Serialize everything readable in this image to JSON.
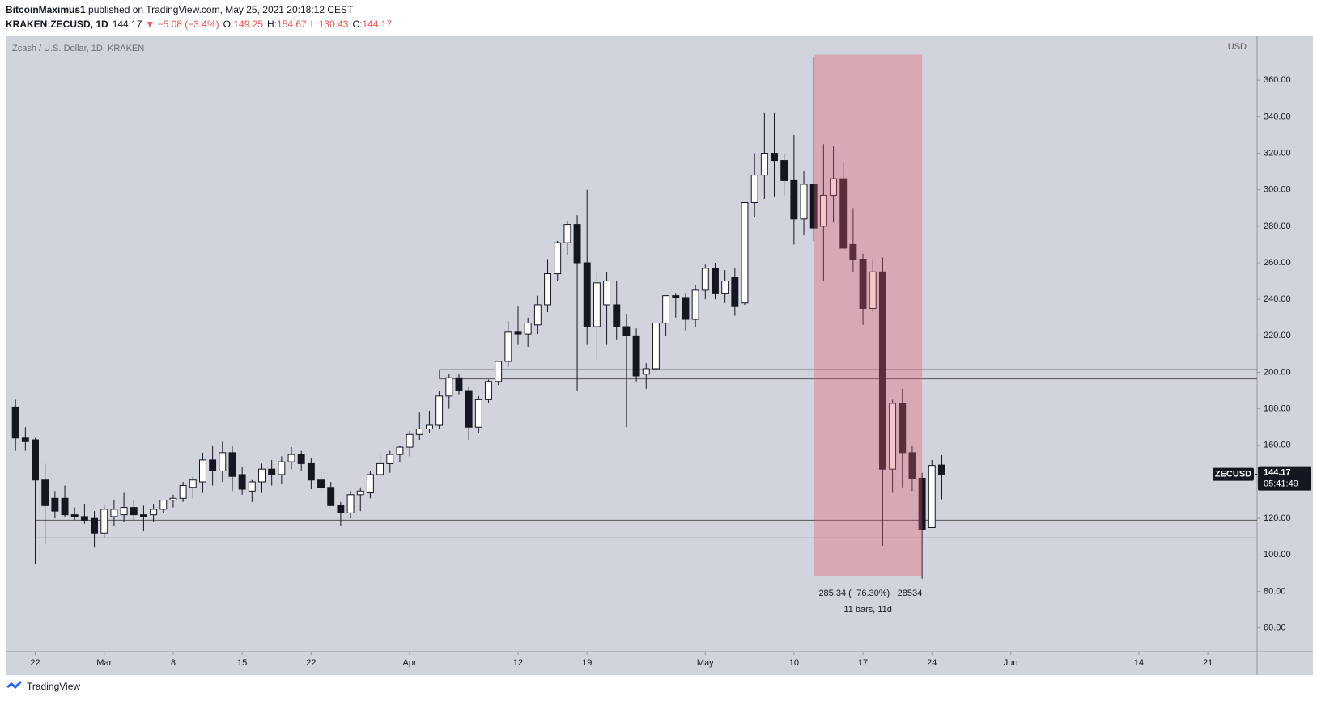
{
  "header": {
    "author": "BitcoinMaximus1",
    "published": " published on TradingView.com, May 25, 2021 20:18:12 CEST",
    "symbol": "KRAKEN:ZECUSD, 1D",
    "price": "144.17",
    "change": "▼ −5.08 (−3.4%)",
    "ohlc": [
      {
        "label": "O:",
        "value": "149.25"
      },
      {
        "label": "H:",
        "value": "154.67"
      },
      {
        "label": "L:",
        "value": "130.43"
      },
      {
        "label": "C:",
        "value": "144.17"
      }
    ]
  },
  "footer": {
    "brand": "TradingView"
  },
  "chart_data": {
    "type": "candlestick",
    "title": "Zcash / U.S. Dollar, 1D, KRAKEN",
    "y_unit": "USD",
    "up_color": "#ffffff",
    "down_color": "#131722",
    "background": "#d1d4dc",
    "x": [
      "Feb 20",
      "Feb 21",
      "Feb 22",
      "Feb 23",
      "Feb 24",
      "Feb 25",
      "Feb 26",
      "Feb 27",
      "Feb 28",
      "Mar 1",
      "Mar 2",
      "Mar 3",
      "Mar 4",
      "Mar 5",
      "Mar 6",
      "Mar 7",
      "Mar 8",
      "Mar 9",
      "Mar 10",
      "Mar 11",
      "Mar 12",
      "Mar 13",
      "Mar 14",
      "Mar 15",
      "Mar 16",
      "Mar 17",
      "Mar 18",
      "Mar 19",
      "Mar 20",
      "Mar 21",
      "Mar 22",
      "Mar 23",
      "Mar 24",
      "Mar 25",
      "Mar 26",
      "Mar 27",
      "Mar 28",
      "Mar 29",
      "Mar 30",
      "Mar 31",
      "Apr 1",
      "Apr 2",
      "Apr 3",
      "Apr 4",
      "Apr 5",
      "Apr 6",
      "Apr 7",
      "Apr 8",
      "Apr 9",
      "Apr 10",
      "Apr 11",
      "Apr 12",
      "Apr 13",
      "Apr 14",
      "Apr 15",
      "Apr 16",
      "Apr 17",
      "Apr 18",
      "Apr 19",
      "Apr 20",
      "Apr 21",
      "Apr 22",
      "Apr 23",
      "Apr 24",
      "Apr 25",
      "Apr 26",
      "Apr 27",
      "Apr 28",
      "Apr 29",
      "Apr 30",
      "May 1",
      "May 2",
      "May 3",
      "May 4",
      "May 5",
      "May 6",
      "May 7",
      "May 8",
      "May 9",
      "May 10",
      "May 11",
      "May 12",
      "May 13",
      "May 14",
      "May 15",
      "May 16",
      "May 17",
      "May 18",
      "May 19",
      "May 20",
      "May 21",
      "May 22",
      "May 23",
      "May 24",
      "May 25"
    ],
    "open": [
      181,
      164,
      163,
      141,
      131,
      131,
      122,
      121,
      120,
      112,
      121,
      122,
      126,
      122,
      122,
      125,
      130,
      131,
      137,
      140,
      152,
      146,
      156,
      144,
      135,
      140,
      147,
      144,
      151,
      155,
      150,
      141,
      137,
      127,
      123,
      133,
      134,
      144,
      150,
      155,
      159,
      166,
      169,
      171,
      187,
      197,
      190,
      170,
      185,
      195,
      206,
      222,
      221,
      226,
      237,
      254,
      271,
      281,
      260,
      225,
      237,
      237,
      225,
      220,
      199,
      202,
      227,
      242,
      241,
      229,
      245,
      257,
      243,
      252,
      238,
      293,
      308,
      320,
      316,
      305,
      284,
      303,
      280,
      297,
      306,
      270,
      262,
      235,
      255,
      147,
      183,
      156,
      142,
      115,
      149.25
    ],
    "high": [
      185,
      170,
      164,
      150,
      135,
      138,
      126,
      128,
      124,
      127,
      130,
      134,
      130,
      127,
      128,
      130,
      133,
      140,
      143,
      156,
      160,
      162,
      160,
      148,
      141,
      150,
      152,
      154,
      159,
      157,
      153,
      146,
      140,
      129,
      135,
      137,
      146,
      155,
      157,
      160,
      168,
      178,
      179,
      190,
      199,
      199,
      192,
      187,
      196,
      206,
      228,
      236,
      230,
      242,
      262,
      272,
      283,
      286,
      300,
      255,
      255,
      250,
      232,
      224,
      205,
      227,
      242,
      243,
      243,
      248,
      259,
      260,
      256,
      257,
      293,
      320,
      342,
      342,
      320,
      330,
      310,
      373,
      325,
      324,
      315,
      290,
      265,
      262,
      263,
      185,
      191,
      160,
      145,
      152,
      154.67
    ],
    "low": [
      157,
      157,
      95,
      106,
      120,
      121,
      119,
      117,
      104,
      109,
      116,
      118,
      119,
      113,
      118,
      123,
      126,
      129,
      131,
      134,
      138,
      140,
      135,
      133,
      129,
      134,
      138,
      139,
      147,
      146,
      136,
      134,
      127,
      116,
      120,
      124,
      131,
      142,
      145,
      151,
      154,
      163,
      167,
      169,
      180,
      188,
      163,
      167,
      183,
      193,
      203,
      215,
      214,
      221,
      233,
      250,
      264,
      190,
      215,
      207,
      215,
      218,
      170,
      195,
      191,
      200,
      220,
      230,
      223,
      225,
      240,
      240,
      238,
      231,
      237,
      285,
      295,
      296,
      297,
      270,
      275,
      272,
      250,
      282,
      268,
      255,
      226,
      233,
      105,
      134,
      137,
      135,
      87,
      115,
      130.43
    ],
    "close": [
      164,
      162,
      141,
      127,
      124,
      122,
      121,
      119,
      112,
      125,
      125,
      126,
      122,
      121,
      125,
      130,
      131,
      138,
      141,
      152,
      146,
      156,
      143,
      136,
      140,
      147,
      144,
      151,
      155,
      150,
      141,
      137,
      127,
      123,
      133,
      135,
      144,
      150,
      155,
      159,
      166,
      169,
      171,
      187,
      197,
      190,
      170,
      185,
      195,
      206,
      222,
      221,
      227,
      237,
      254,
      271,
      281,
      260,
      225,
      249,
      250,
      225,
      220,
      198,
      202,
      227,
      242,
      241,
      229,
      245,
      257,
      243,
      250,
      236,
      293,
      308,
      320,
      316,
      305,
      284,
      303,
      279,
      297,
      306,
      268,
      262,
      235,
      255,
      147,
      183,
      156,
      142,
      114,
      149,
      144.17
    ],
    "xlim": [
      "Feb 19",
      "Jun 26"
    ],
    "xticks": [
      {
        "value": "Feb 22",
        "label": "22"
      },
      {
        "value": "Mar 1",
        "label": "Mar"
      },
      {
        "value": "Mar 8",
        "label": "8"
      },
      {
        "value": "Mar 15",
        "label": "15"
      },
      {
        "value": "Mar 22",
        "label": "22"
      },
      {
        "value": "Apr 1",
        "label": "Apr"
      },
      {
        "value": "Apr 12",
        "label": "12"
      },
      {
        "value": "Apr 19",
        "label": "19"
      },
      {
        "value": "May 1",
        "label": "May"
      },
      {
        "value": "May 10",
        "label": "10"
      },
      {
        "value": "May 17",
        "label": "17"
      },
      {
        "value": "May 24",
        "label": "24"
      },
      {
        "value": "Jun 1",
        "label": "Jun"
      },
      {
        "value": "Jun 14",
        "label": "14"
      },
      {
        "value": "Jun 21",
        "label": "21"
      }
    ],
    "ylim": [
      47,
      384
    ],
    "yticks": [
      {
        "value": 60,
        "label": "60.00"
      },
      {
        "value": 80,
        "label": "80.00"
      },
      {
        "value": 100,
        "label": "100.00"
      },
      {
        "value": 120,
        "label": "120.00"
      },
      {
        "value": 140,
        "label": "140.00"
      },
      {
        "value": 160,
        "label": "160.00"
      },
      {
        "value": 180,
        "label": "180.00"
      },
      {
        "value": 200,
        "label": "200.00"
      },
      {
        "value": 220,
        "label": "220.00"
      },
      {
        "value": 240,
        "label": "240.00"
      },
      {
        "value": 260,
        "label": "260.00"
      },
      {
        "value": 280,
        "label": "280.00"
      },
      {
        "value": 300,
        "label": "300.00"
      },
      {
        "value": 320,
        "label": "320.00"
      },
      {
        "value": 340,
        "label": "340.00"
      },
      {
        "value": 360,
        "label": "360.00"
      }
    ],
    "zones": [
      {
        "from": "Apr 4",
        "top": 201.5,
        "bottom": 196.4
      },
      {
        "from": "Feb 22",
        "top": 119,
        "bottom": 109.3
      }
    ],
    "measure": {
      "from": "May 12",
      "to": "May 23",
      "top": 374,
      "bottom": 88.6,
      "color": "#e05a6a",
      "label": "−285.34 (−76.30%) −28534",
      "sublabel": "11 bars, 11d"
    },
    "last_label": {
      "symbol": "ZECUSD",
      "countdown": "05:41:49"
    }
  }
}
